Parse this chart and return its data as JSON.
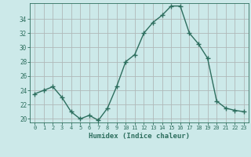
{
  "x": [
    0,
    1,
    2,
    3,
    4,
    5,
    6,
    7,
    8,
    9,
    10,
    11,
    12,
    13,
    14,
    15,
    16,
    17,
    18,
    19,
    20,
    21,
    22,
    23
  ],
  "y": [
    23.5,
    24.0,
    24.5,
    23.0,
    21.0,
    20.0,
    20.5,
    19.8,
    21.5,
    24.5,
    28.0,
    29.0,
    32.0,
    33.5,
    34.5,
    35.8,
    35.8,
    32.0,
    30.5,
    28.5,
    22.5,
    21.5,
    21.2,
    21.0
  ],
  "line_color": "#2d6e5e",
  "marker": "+",
  "marker_size": 4,
  "linewidth": 1.0,
  "xlabel": "Humidex (Indice chaleur)",
  "bg_color": "#cce9e9",
  "grid_color": "#b0b8b8",
  "yticks": [
    20,
    22,
    24,
    26,
    28,
    30,
    32,
    34
  ],
  "xticks": [
    0,
    1,
    2,
    3,
    4,
    5,
    6,
    7,
    8,
    9,
    10,
    11,
    12,
    13,
    14,
    15,
    16,
    17,
    18,
    19,
    20,
    21,
    22,
    23
  ],
  "ylim": [
    19.5,
    36.2
  ],
  "xlim": [
    -0.5,
    23.5
  ]
}
